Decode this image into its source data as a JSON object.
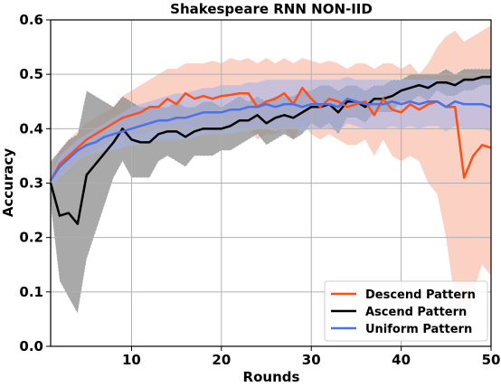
{
  "chart_data": {
    "type": "line",
    "title": "Shakespeare RNN NON-IID",
    "xlabel": "Rounds",
    "ylabel": "Accuracy",
    "xlim": [
      1,
      50
    ],
    "ylim": [
      0.0,
      0.6
    ],
    "xticks": [
      10,
      20,
      30,
      40,
      50
    ],
    "yticks": [
      0.0,
      0.1,
      0.2,
      0.3,
      0.4,
      0.5,
      0.6
    ],
    "ytick_labels": [
      "0.0",
      "0.1",
      "0.2",
      "0.3",
      "0.4",
      "0.5",
      "0.6"
    ],
    "grid": true,
    "legend_position": "bottom-right",
    "x": [
      1,
      2,
      3,
      4,
      5,
      6,
      7,
      8,
      9,
      10,
      11,
      12,
      13,
      14,
      15,
      16,
      17,
      18,
      19,
      20,
      21,
      22,
      23,
      24,
      25,
      26,
      27,
      28,
      29,
      30,
      31,
      32,
      33,
      34,
      35,
      36,
      37,
      38,
      39,
      40,
      41,
      42,
      43,
      44,
      45,
      46,
      47,
      48,
      49,
      50
    ],
    "series": [
      {
        "name": "Descend Pattern",
        "color": "#ff4f14",
        "band_color": "#f9b39c",
        "values": [
          0.305,
          0.335,
          0.35,
          0.365,
          0.38,
          0.39,
          0.4,
          0.41,
          0.42,
          0.425,
          0.43,
          0.44,
          0.44,
          0.455,
          0.445,
          0.465,
          0.455,
          0.46,
          0.455,
          0.46,
          0.462,
          0.465,
          0.465,
          0.44,
          0.45,
          0.455,
          0.465,
          0.445,
          0.475,
          0.455,
          0.44,
          0.455,
          0.45,
          0.44,
          0.445,
          0.45,
          0.425,
          0.455,
          0.435,
          0.43,
          0.445,
          0.435,
          0.445,
          0.45,
          0.44,
          0.44,
          0.31,
          0.35,
          0.37,
          0.365
        ],
        "upper": [
          0.32,
          0.36,
          0.38,
          0.395,
          0.41,
          0.42,
          0.43,
          0.44,
          0.46,
          0.47,
          0.48,
          0.49,
          0.5,
          0.51,
          0.51,
          0.52,
          0.52,
          0.52,
          0.525,
          0.52,
          0.53,
          0.525,
          0.53,
          0.52,
          0.53,
          0.52,
          0.53,
          0.52,
          0.53,
          0.525,
          0.52,
          0.525,
          0.52,
          0.51,
          0.52,
          0.52,
          0.51,
          0.52,
          0.52,
          0.51,
          0.52,
          0.5,
          0.52,
          0.55,
          0.57,
          0.58,
          0.56,
          0.57,
          0.58,
          0.59
        ],
        "lower": [
          0.29,
          0.31,
          0.33,
          0.34,
          0.35,
          0.36,
          0.37,
          0.38,
          0.385,
          0.39,
          0.39,
          0.395,
          0.4,
          0.4,
          0.39,
          0.41,
          0.4,
          0.4,
          0.39,
          0.4,
          0.4,
          0.4,
          0.4,
          0.38,
          0.39,
          0.39,
          0.4,
          0.38,
          0.41,
          0.39,
          0.38,
          0.39,
          0.38,
          0.37,
          0.37,
          0.38,
          0.35,
          0.38,
          0.35,
          0.34,
          0.35,
          0.34,
          0.3,
          0.28,
          0.2,
          0.08,
          0.02,
          0.1,
          0.15,
          0.13
        ]
      },
      {
        "name": "Ascend Pattern",
        "color": "#000000",
        "band_color": "#8c8c8c",
        "values": [
          0.3,
          0.24,
          0.245,
          0.225,
          0.315,
          0.335,
          0.355,
          0.375,
          0.4,
          0.38,
          0.375,
          0.375,
          0.39,
          0.395,
          0.395,
          0.385,
          0.395,
          0.4,
          0.4,
          0.4,
          0.405,
          0.415,
          0.415,
          0.425,
          0.41,
          0.42,
          0.425,
          0.42,
          0.43,
          0.44,
          0.44,
          0.445,
          0.43,
          0.45,
          0.45,
          0.44,
          0.455,
          0.455,
          0.46,
          0.47,
          0.475,
          0.48,
          0.475,
          0.485,
          0.485,
          0.48,
          0.49,
          0.49,
          0.495,
          0.495
        ],
        "upper": [
          0.34,
          0.36,
          0.38,
          0.39,
          0.47,
          0.46,
          0.45,
          0.44,
          0.46,
          0.45,
          0.44,
          0.44,
          0.44,
          0.44,
          0.45,
          0.44,
          0.44,
          0.45,
          0.45,
          0.44,
          0.45,
          0.46,
          0.45,
          0.46,
          0.45,
          0.46,
          0.46,
          0.46,
          0.47,
          0.47,
          0.48,
          0.48,
          0.47,
          0.48,
          0.48,
          0.47,
          0.48,
          0.48,
          0.49,
          0.49,
          0.5,
          0.5,
          0.5,
          0.5,
          0.51,
          0.5,
          0.51,
          0.51,
          0.51,
          0.51
        ],
        "lower": [
          0.26,
          0.12,
          0.09,
          0.06,
          0.16,
          0.21,
          0.26,
          0.31,
          0.34,
          0.31,
          0.31,
          0.31,
          0.34,
          0.35,
          0.34,
          0.33,
          0.35,
          0.35,
          0.35,
          0.36,
          0.36,
          0.37,
          0.38,
          0.39,
          0.37,
          0.38,
          0.39,
          0.38,
          0.39,
          0.41,
          0.4,
          0.41,
          0.39,
          0.42,
          0.42,
          0.41,
          0.43,
          0.43,
          0.43,
          0.45,
          0.45,
          0.46,
          0.45,
          0.47,
          0.46,
          0.46,
          0.47,
          0.47,
          0.48,
          0.48
        ]
      },
      {
        "name": "Uniform Pattern",
        "color": "#4f72e3",
        "band_color": "#a7b4ea",
        "values": [
          0.305,
          0.33,
          0.345,
          0.36,
          0.37,
          0.375,
          0.385,
          0.39,
          0.395,
          0.4,
          0.405,
          0.41,
          0.415,
          0.415,
          0.42,
          0.42,
          0.425,
          0.43,
          0.43,
          0.43,
          0.435,
          0.435,
          0.44,
          0.44,
          0.445,
          0.44,
          0.445,
          0.445,
          0.44,
          0.445,
          0.445,
          0.445,
          0.44,
          0.455,
          0.45,
          0.445,
          0.445,
          0.445,
          0.45,
          0.445,
          0.45,
          0.445,
          0.45,
          0.45,
          0.44,
          0.45,
          0.445,
          0.445,
          0.445,
          0.44
        ],
        "upper": [
          0.32,
          0.35,
          0.365,
          0.38,
          0.39,
          0.4,
          0.41,
          0.42,
          0.43,
          0.44,
          0.445,
          0.45,
          0.455,
          0.46,
          0.465,
          0.465,
          0.47,
          0.475,
          0.475,
          0.48,
          0.48,
          0.48,
          0.485,
          0.485,
          0.49,
          0.49,
          0.49,
          0.49,
          0.49,
          0.49,
          0.49,
          0.49,
          0.49,
          0.495,
          0.49,
          0.49,
          0.49,
          0.49,
          0.49,
          0.49,
          0.49,
          0.49,
          0.49,
          0.49,
          0.48,
          0.49,
          0.49,
          0.49,
          0.49,
          0.49
        ],
        "lower": [
          0.29,
          0.31,
          0.325,
          0.34,
          0.35,
          0.355,
          0.36,
          0.36,
          0.365,
          0.37,
          0.37,
          0.375,
          0.38,
          0.38,
          0.38,
          0.38,
          0.385,
          0.39,
          0.39,
          0.39,
          0.39,
          0.395,
          0.395,
          0.4,
          0.4,
          0.395,
          0.4,
          0.4,
          0.395,
          0.4,
          0.4,
          0.4,
          0.395,
          0.41,
          0.405,
          0.4,
          0.4,
          0.4,
          0.405,
          0.4,
          0.405,
          0.4,
          0.405,
          0.405,
          0.395,
          0.405,
          0.4,
          0.4,
          0.4,
          0.395
        ]
      }
    ]
  }
}
